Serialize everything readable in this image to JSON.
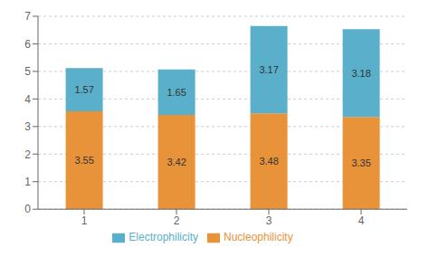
{
  "chart_data": {
    "type": "bar",
    "stacked": true,
    "categories": [
      "1",
      "2",
      "3",
      "4"
    ],
    "series": [
      {
        "name": "Nucleophilicity",
        "color": "#E8923A",
        "values": [
          3.55,
          3.42,
          3.48,
          3.35
        ]
      },
      {
        "name": "Electrophilicity",
        "color": "#5AAFCA",
        "values": [
          1.57,
          1.65,
          3.17,
          3.18
        ]
      }
    ],
    "ylim": [
      0,
      7
    ],
    "yticks": [
      0,
      1,
      2,
      3,
      4,
      5,
      6,
      7
    ],
    "grid": true,
    "legend": "bottom",
    "data_labels": true
  }
}
